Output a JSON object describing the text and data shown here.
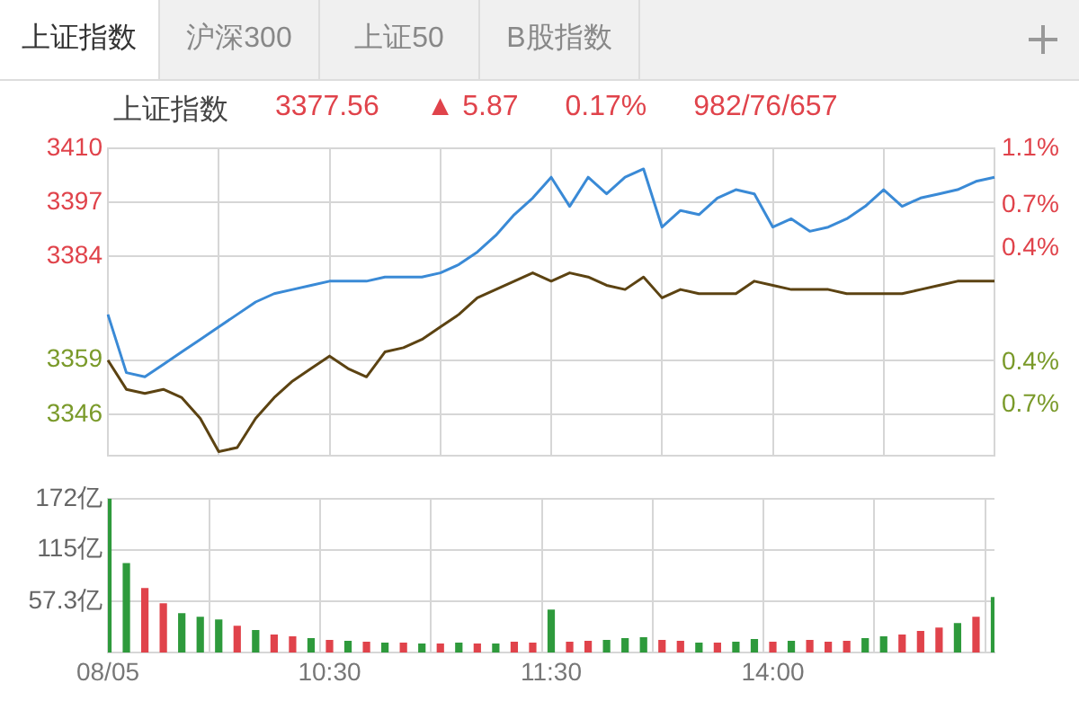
{
  "chart_data": [
    {
      "type": "other",
      "annotations": [
        "上证指数",
        "沪深300",
        "上证50",
        "B股指数"
      ]
    },
    {
      "type": "line",
      "title": "上证指数",
      "annotations": [
        "3377.56",
        "▲ 5.87",
        "0.17%",
        "982/76/657"
      ],
      "categories": [
        null,
        null,
        null,
        null,
        null,
        null,
        null,
        null,
        null,
        null,
        null,
        null,
        null,
        null,
        null,
        null,
        null,
        null,
        null,
        null,
        null,
        null,
        null,
        null,
        null,
        null,
        null,
        null,
        null,
        null,
        null,
        null,
        null,
        null,
        null,
        null,
        null,
        null,
        null,
        null,
        null,
        null,
        null,
        null,
        null,
        null,
        null,
        null,
        null
      ],
      "ylim": [
        3336,
        3410
      ],
      "yticks": [
        3346,
        3359,
        3384,
        3397,
        3410
      ],
      "y2lim": [
        -1.058,
        1.1
      ],
      "y2ticks": [
        {
          "value": -0.7,
          "label": "0.7%"
        },
        {
          "value": -0.4,
          "label": "0.4%"
        },
        {
          "value": 0.4,
          "label": "0.4%"
        },
        {
          "value": 0.7,
          "label": "0.7%"
        },
        {
          "value": 1.1,
          "label": "1.1%"
        }
      ],
      "grid": true,
      "legend": false,
      "marker": "none",
      "line_style": "solid",
      "series": [
        {
          "color": "#3a8ad6",
          "values": [
            3370,
            3356,
            3355,
            3358,
            3361,
            3364,
            3367,
            3370,
            3373,
            3375,
            3376,
            3377,
            3378,
            3378,
            3378,
            3379,
            3379,
            3379,
            3380,
            3382,
            3385,
            3389,
            3394,
            3398,
            3403,
            3396,
            3403,
            3399,
            3403,
            3405,
            3391,
            3395,
            3394,
            3398,
            3400,
            3399,
            3391,
            3393,
            3390,
            3391,
            3393,
            3396,
            3400,
            3396,
            3398,
            3399,
            3400,
            3402,
            3403
          ]
        },
        {
          "color": "#5c4312",
          "values": [
            3359,
            3352,
            3351,
            3352,
            3350,
            3345,
            3337,
            3338,
            3345,
            3350,
            3354,
            3357,
            3360,
            3357,
            3355,
            3361,
            3362,
            3364,
            3367,
            3370,
            3374,
            3376,
            3378,
            3380,
            3378,
            3380,
            3379,
            3377,
            3376,
            3379,
            3374,
            3376,
            3375,
            3375,
            3375,
            3378,
            3377,
            3376,
            3376,
            3376,
            3375,
            3375,
            3375,
            3375,
            3376,
            3377,
            3378,
            3378,
            3378
          ]
        }
      ]
    },
    {
      "type": "bar",
      "categories": [
        "08/05",
        null,
        null,
        null,
        null,
        null,
        null,
        null,
        null,
        null,
        null,
        null,
        "10:30",
        null,
        null,
        null,
        null,
        null,
        null,
        null,
        null,
        null,
        null,
        null,
        "11:30",
        null,
        null,
        null,
        null,
        null,
        null,
        null,
        null,
        null,
        null,
        null,
        "14:00",
        null,
        null,
        null,
        null,
        null,
        null,
        null,
        null,
        null,
        null,
        null,
        null
      ],
      "ylim": [
        0,
        172
      ],
      "yticks": [
        {
          "value": 57.3,
          "label": "57.3亿"
        },
        {
          "value": 115,
          "label": "115亿"
        },
        {
          "value": 172,
          "label": "172亿"
        }
      ],
      "grid": true,
      "legend": false,
      "values": [
        172,
        100,
        72,
        55,
        44,
        40,
        37,
        30,
        25,
        20,
        18,
        16,
        14,
        13,
        12,
        11,
        11,
        10,
        10,
        11,
        10,
        10,
        12,
        11,
        48,
        12,
        13,
        14,
        16,
        17,
        14,
        13,
        11,
        11,
        12,
        15,
        12,
        13,
        14,
        12,
        13,
        16,
        18,
        20,
        24,
        28,
        33,
        40,
        62
      ],
      "colors": [
        "#2e9a3c",
        "#2e9a3c",
        "#e0434b",
        "#e0434b",
        "#2e9a3c",
        "#2e9a3c",
        "#2e9a3c",
        "#e0434b",
        "#2e9a3c",
        "#e0434b",
        "#e0434b",
        "#2e9a3c",
        "#e0434b",
        "#2e9a3c",
        "#e0434b",
        "#2e9a3c",
        "#e0434b",
        "#2e9a3c",
        "#e0434b",
        "#2e9a3c",
        "#e0434b",
        "#2e9a3c",
        "#e0434b",
        "#e0434b",
        "#2e9a3c",
        "#e0434b",
        "#e0434b",
        "#2e9a3c",
        "#2e9a3c",
        "#2e9a3c",
        "#e0434b",
        "#e0434b",
        "#2e9a3c",
        "#e0434b",
        "#2e9a3c",
        "#2e9a3c",
        "#e0434b",
        "#2e9a3c",
        "#e0434b",
        "#e0434b",
        "#e0434b",
        "#2e9a3c",
        "#2e9a3c",
        "#e0434b",
        "#e0434b",
        "#e0434b",
        "#2e9a3c",
        "#e0434b",
        "#2e9a3c"
      ]
    }
  ]
}
